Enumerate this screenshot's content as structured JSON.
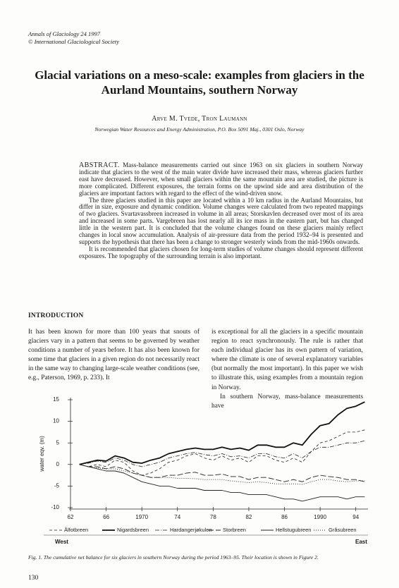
{
  "header": {
    "journal": "Annals of Glaciology 24 1997",
    "copyright": "© International Glaciological Society"
  },
  "title": "Glacial variations on a meso-scale: examples from glaciers in the Aurland Mountains, southern Norway",
  "authors": "Arve M. Tvede, Tron Laumann",
  "affiliation": "Norwegian Water Resources and Energy Administration, P.O. Box 5091 Maj., 0301 Oslo, Norway",
  "abstract": {
    "label": "ABSTRACT.",
    "paragraphs": [
      "Mass-balance measurements carried out since 1963 on six glaciers in southern Norway indicate that glaciers to the west of the main water divide have increased their mass, whereas glaciers further east have decreased. However, when small glaciers within the same mountain area are studied, the picture is more complicated. Different exposures, the terrain forms on the upwind side and area distribution of the glaciers are important factors with regard to the effect of the wind-driven snow.",
      "The three glaciers studied in this paper are located within a 10 km radius in the Aurland Mountains, but differ in size, exposure and dynamic condition. Volume changes were calculated from two repeated mappings of two glaciers. Svartavassbreen increased in volume in all areas; Storskavlen decreased over most of its area and increased in some parts. Vargebreen has lost nearly all its ice mass in the eastern part, but has changed little in the western part. It is concluded that the volume changes found on these glaciers mainly reflect changes in local snow accumulation. Analysis of air-pressure data from the period 1932–94 is presented and supports the hypothesis that there has been a change to stronger westerly winds from the mid-1960s onwards.",
      "It is recommended that glaciers chosen for long-term studies of volume changes should represent different exposures. The topography of the surrounding terrain is also important."
    ]
  },
  "introduction": {
    "heading": "INTRODUCTION",
    "left": [
      "It has been known for more than 100 years that snouts of glaciers vary in a pattern that seems to be governed by weather conditions a number of years before. It has also been known for some time that glaciers in a given region do not necessarily react in the same way to changing large-scale weather conditions (see, e.g., Paterson, 1969, p. 233). It"
    ],
    "right": [
      "is exceptional for all the glaciers in a specific mountain region to react synchronously. The rule is rather that each individual glacier has its own pattern of variation, where the climate is one of several explanatory variables (but normally the most important). In this paper we wish to illustrate this, using examples from a mountain region in Norway.",
      "In southern Norway, mass-balance measurements have"
    ]
  },
  "chart_data": {
    "type": "line",
    "ylabel": "water eqv. (m)",
    "x": [
      1963,
      1964,
      1965,
      1966,
      1967,
      1968,
      1969,
      1970,
      1971,
      1972,
      1973,
      1974,
      1975,
      1976,
      1977,
      1978,
      1979,
      1980,
      1981,
      1982,
      1983,
      1984,
      1985,
      1986,
      1987,
      1988,
      1989,
      1990,
      1991,
      1992,
      1993,
      1994,
      1995
    ],
    "xlim": [
      1962,
      1996
    ],
    "xticks": [
      {
        "value": 1962,
        "label": "62"
      },
      {
        "value": 1966,
        "label": "66"
      },
      1970,
      {
        "value": 1974,
        "label": "74"
      },
      {
        "value": 1978,
        "label": "78"
      },
      {
        "value": 1982,
        "label": "82"
      },
      {
        "value": 1986,
        "label": "86"
      },
      1990,
      {
        "value": 1994,
        "label": "94"
      }
    ],
    "ylim": [
      -10,
      15
    ],
    "yticks": [
      -10,
      -5,
      0,
      5,
      10,
      15
    ],
    "legend": "bottom",
    "series": [
      {
        "name": "Ålfotbreen",
        "color": "#222222",
        "dash": "4 3",
        "line_width": 0.8,
        "values": [
          0,
          -0.5,
          0,
          -0.5,
          1,
          0.5,
          -1.5,
          -2.5,
          -2,
          -1,
          0.5,
          1,
          2,
          2.5,
          1.5,
          1,
          2,
          1,
          1.5,
          0.5,
          2,
          2,
          1,
          0.5,
          1.5,
          0.5,
          3,
          5,
          5.5,
          6.5,
          7.5,
          7.5,
          8
        ]
      },
      {
        "name": "Nigardsbreen",
        "color": "#111111",
        "dash": "none",
        "line_width": 1.8,
        "values": [
          0,
          0.5,
          1,
          0.8,
          2,
          1.5,
          0.5,
          0.3,
          1,
          1.5,
          2.5,
          3,
          3.5,
          3.8,
          3.5,
          3.5,
          4,
          3.5,
          3.8,
          3.3,
          4.5,
          4.5,
          4,
          4,
          5,
          4.5,
          7,
          9,
          9.5,
          11.5,
          13,
          13.5,
          14.5
        ]
      },
      {
        "name": "Hardangerjøkulen",
        "color": "#222222",
        "dash": "6 2 1 2",
        "line_width": 0.8,
        "values": [
          0,
          0.3,
          0.8,
          0.5,
          1.5,
          1,
          0,
          -0.5,
          0,
          0.5,
          1.5,
          2,
          2.5,
          2.8,
          2.3,
          2,
          2.5,
          1.8,
          2,
          1.5,
          2.5,
          2.5,
          1.8,
          1.5,
          2.5,
          1.5,
          3,
          4,
          4,
          4.5,
          5,
          5,
          5.5
        ]
      },
      {
        "name": "Storbreen",
        "color": "#222222",
        "dash": "8 3",
        "line_width": 0.9,
        "values": [
          0,
          -0.5,
          -0.5,
          -1,
          -0.5,
          -1,
          -2,
          -2.5,
          -3,
          -3,
          -2.5,
          -2.5,
          -2,
          -1.8,
          -2.5,
          -2.5,
          -2.2,
          -2.8,
          -2.8,
          -3.5,
          -3,
          -3,
          -3.5,
          -4,
          -3.5,
          -4,
          -3,
          -2.5,
          -2.8,
          -3,
          -3.5,
          -3.5,
          -4
        ]
      },
      {
        "name": "Hellstugubreen",
        "color": "#222222",
        "dash": "none",
        "line_width": 0.9,
        "values": [
          0,
          -0.5,
          -1,
          -1.5,
          -1.5,
          -2,
          -3,
          -4,
          -4.5,
          -5,
          -5,
          -5.5,
          -5.5,
          -5.5,
          -6,
          -6,
          -6,
          -6.5,
          -6.5,
          -7,
          -7,
          -7,
          -7.5,
          -8,
          -8,
          -8.5,
          -8,
          -7.5,
          -7.5,
          -7.5,
          -8,
          -7.5,
          -7.5
        ]
      },
      {
        "name": "Gråsubreen",
        "color": "#222222",
        "dash": "1 2",
        "line_width": 0.9,
        "values": [
          0,
          -0.5,
          -0.8,
          -1,
          -1,
          -1.5,
          -2,
          -2.5,
          -3,
          -3,
          -3,
          -3.2,
          -3.2,
          -3.3,
          -3.5,
          -3.5,
          -3.5,
          -3.8,
          -4,
          -4.2,
          -4,
          -4.2,
          -4.5,
          -4.5,
          -4.5,
          -4.6,
          -4,
          -3.5,
          -3.5,
          -3.8,
          -4,
          -3.8,
          -3.8
        ]
      }
    ]
  },
  "figure": {
    "west": "West",
    "east": "East",
    "caption": "Fig. 1. The cumulative net balance for six glaciers in southern Norway during the period 1963–95. Their location is shown in Figure 2."
  },
  "page_number": "130"
}
